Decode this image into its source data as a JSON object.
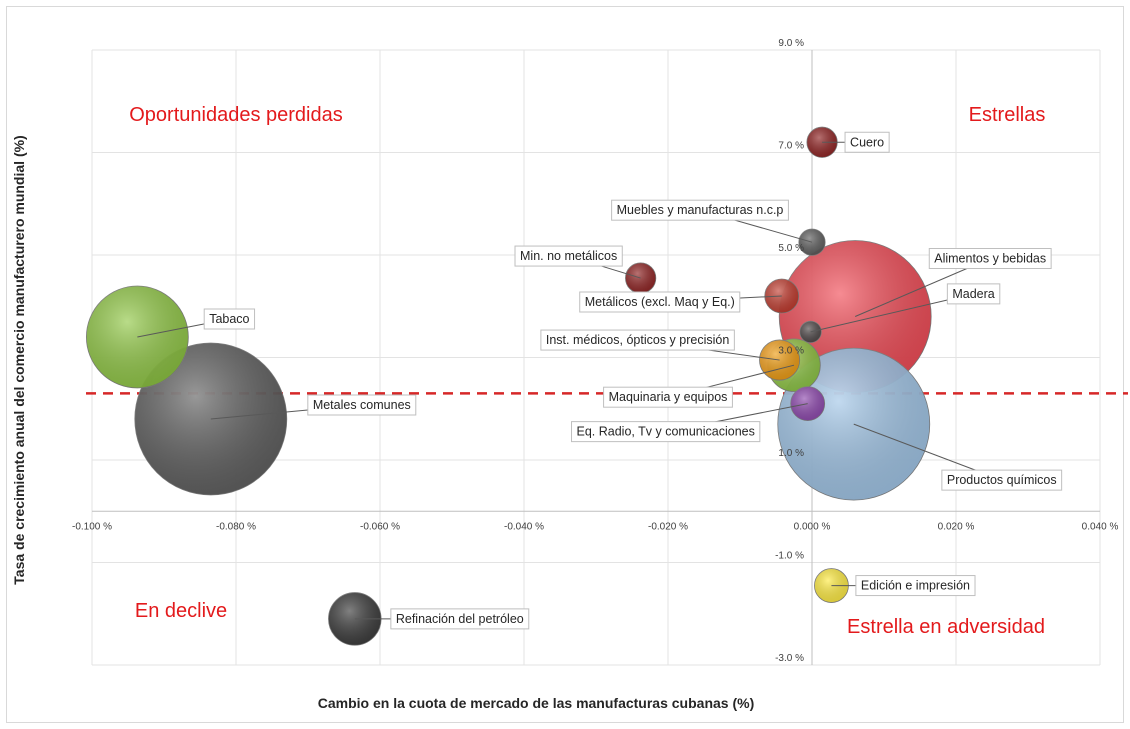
{
  "chart_data": {
    "type": "scatter",
    "subtype": "bubble",
    "xlabel": "Cambio en la cuota de mercado de las manufacturas cubanas (%)",
    "ylabel": "Tasa de crecimiento anual del comercio manufacturero mundial (%)",
    "xlim": [
      -0.1,
      0.04
    ],
    "ylim": [
      -3.0,
      9.0
    ],
    "x_ticks": [
      {
        "value": -0.1,
        "label": "-0.100 %"
      },
      {
        "value": -0.08,
        "label": "-0.080 %"
      },
      {
        "value": -0.06,
        "label": "-0.060 %"
      },
      {
        "value": -0.04,
        "label": "-0.040 %"
      },
      {
        "value": -0.02,
        "label": "-0.020 %"
      },
      {
        "value": 0.0,
        "label": "0.000 %"
      },
      {
        "value": 0.02,
        "label": "0.020 %"
      },
      {
        "value": 0.04,
        "label": "0.040 %"
      }
    ],
    "y_ticks": [
      {
        "value": 9.0,
        "label": "9.0 %"
      },
      {
        "value": 7.0,
        "label": "7.0 %"
      },
      {
        "value": 5.0,
        "label": "5.0 %"
      },
      {
        "value": 3.0,
        "label": "3.0 %"
      },
      {
        "value": 1.0,
        "label": "1.0 %"
      },
      {
        "value": -1.0,
        "label": "-1.0 %"
      },
      {
        "value": -3.0,
        "label": "-3.0 %"
      }
    ],
    "grid": true,
    "reference_line": {
      "y": 2.3,
      "style": "dashed",
      "color": "#d62728"
    },
    "quadrant_labels": [
      {
        "text": "Oportunidades perdidas",
        "position": "top-left"
      },
      {
        "text": "Estrellas",
        "position": "top-right"
      },
      {
        "text": "En declive",
        "position": "bottom-left"
      },
      {
        "text": "Estrella en adversidad",
        "position": "bottom-right"
      }
    ],
    "points": [
      {
        "name": "Cuero",
        "x": 0.0014,
        "y": 7.2,
        "size": 0.04,
        "color": "#8b1a1a",
        "label_side": "right"
      },
      {
        "name": "Muebles y manufacturas n.c.p",
        "x": 0.0,
        "y": 5.25,
        "size": 0.03,
        "color": "#595959",
        "label_side": "left"
      },
      {
        "name": "Min. no metálicos",
        "x": -0.0238,
        "y": 4.55,
        "size": 0.04,
        "color": "#8b1a1a",
        "label_side": "left"
      },
      {
        "name": "Alimentos y bebidas",
        "x": 0.006,
        "y": 3.8,
        "size": 1.0,
        "color": "#f0434f",
        "label_side": "right"
      },
      {
        "name": "Metálicos (excl. Maq y Eq.)",
        "x": -0.0042,
        "y": 4.2,
        "size": 0.05,
        "color": "#c0392b",
        "label_side": "left"
      },
      {
        "name": "Madera",
        "x": -0.0002,
        "y": 3.5,
        "size": 0.02,
        "color": "#4a4a4a",
        "label_side": "right"
      },
      {
        "name": "Tabaco",
        "x": -0.0937,
        "y": 3.4,
        "size": 0.45,
        "color": "#8dc63f",
        "label_side": "right"
      },
      {
        "name": "Inst. médicos, ópticos y precisión",
        "x": -0.0045,
        "y": 2.95,
        "size": 0.07,
        "color": "#f39c12",
        "label_side": "left"
      },
      {
        "name": "Maquinaria y equipos",
        "x": -0.0025,
        "y": 2.85,
        "size": 0.12,
        "color": "#8dc63f",
        "label_side": "left"
      },
      {
        "name": "Metales comunes",
        "x": -0.0835,
        "y": 1.8,
        "size": 1.0,
        "color": "#595959",
        "label_side": "right"
      },
      {
        "name": "Eq. Radio, Tv y comunicaciones",
        "x": -0.0006,
        "y": 2.1,
        "size": 0.05,
        "color": "#8e44ad",
        "label_side": "left"
      },
      {
        "name": "Productos químicos",
        "x": 0.0058,
        "y": 1.7,
        "size": 1.0,
        "color": "#9dc3e6",
        "label_side": "right"
      },
      {
        "name": "Edición e impresión",
        "x": 0.0027,
        "y": -1.45,
        "size": 0.05,
        "color": "#ffeb3b",
        "label_side": "right"
      },
      {
        "name": "Refinación del petróleo",
        "x": -0.0635,
        "y": -2.1,
        "size": 0.12,
        "color": "#333333",
        "label_side": "right"
      }
    ]
  }
}
